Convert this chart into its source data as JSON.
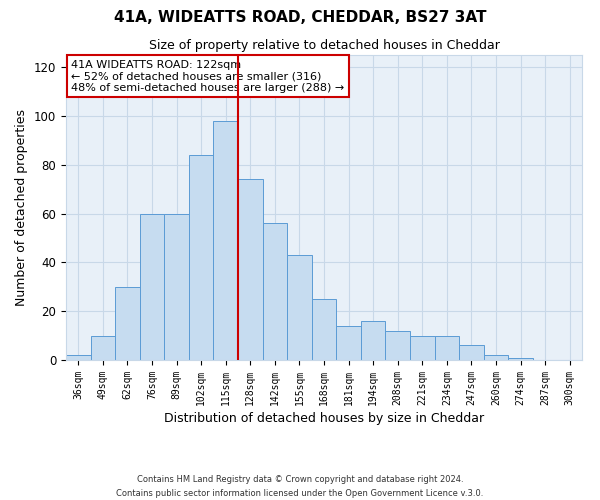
{
  "title": "41A, WIDEATTS ROAD, CHEDDAR, BS27 3AT",
  "subtitle": "Size of property relative to detached houses in Cheddar",
  "xlabel": "Distribution of detached houses by size in Cheddar",
  "ylabel": "Number of detached properties",
  "bar_labels": [
    "36sqm",
    "49sqm",
    "62sqm",
    "76sqm",
    "89sqm",
    "102sqm",
    "115sqm",
    "128sqm",
    "142sqm",
    "155sqm",
    "168sqm",
    "181sqm",
    "194sqm",
    "208sqm",
    "221sqm",
    "234sqm",
    "247sqm",
    "260sqm",
    "274sqm",
    "287sqm",
    "300sqm"
  ],
  "bar_heights": [
    2,
    10,
    30,
    60,
    60,
    84,
    98,
    74,
    56,
    43,
    25,
    14,
    16,
    12,
    10,
    10,
    6,
    2,
    1,
    0,
    0
  ],
  "bar_color": "#c6dcf0",
  "bar_edge_color": "#5b9bd5",
  "vline_x_index": 6.5,
  "vline_color": "#cc0000",
  "annotation_title": "41A WIDEATTS ROAD: 122sqm",
  "annotation_line1": "← 52% of detached houses are smaller (316)",
  "annotation_line2": "48% of semi-detached houses are larger (288) →",
  "annotation_box_color": "#ffffff",
  "annotation_box_edge": "#cc0000",
  "grid_color": "#c8d8e8",
  "bg_color": "#e8f0f8",
  "ylim": [
    0,
    125
  ],
  "yticks": [
    0,
    20,
    40,
    60,
    80,
    100,
    120
  ],
  "footer1": "Contains HM Land Registry data © Crown copyright and database right 2024.",
  "footer2": "Contains public sector information licensed under the Open Government Licence v.3.0."
}
